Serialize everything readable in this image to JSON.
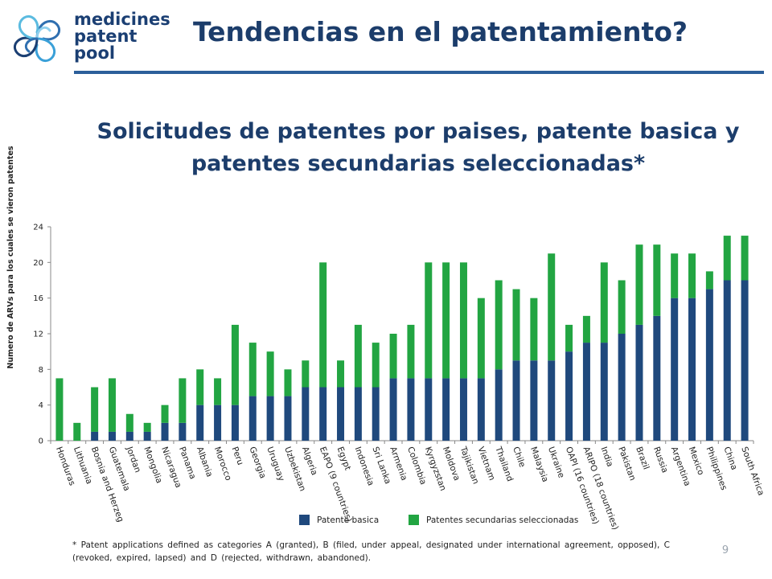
{
  "logo": {
    "line1": "medicines",
    "line2": "patent",
    "line3": "pool"
  },
  "slide_title": "Tendencias en el patentamiento?",
  "subtitle": "Solicitudes de patentes por paises, patente basica y patentes secundarias seleccionadas*",
  "footnote": "* Patent applications defined as categories A (granted), B (filed, under appeal, designated under international agreement, opposed), C (revoked, expired, lapsed) and D (rejected, withdrawn, abandoned).",
  "page_number": "9",
  "colors": {
    "basic": "#1f497d",
    "secondary": "#22a542"
  },
  "chart_data": {
    "type": "bar",
    "stacked": true,
    "ylabel": "Numero de ARVs para los cuales se vieron patentes",
    "ylim": [
      0,
      24
    ],
    "yticks": [
      0,
      4,
      8,
      12,
      16,
      20,
      24
    ],
    "legend_position": "bottom",
    "categories": [
      "Honduras",
      "Lithuania",
      "Bosnia and Herzeg",
      "Guatemala",
      "Jordan",
      "Mongolia",
      "Nicaragua",
      "Panama",
      "Albania",
      "Morocco",
      "Peru",
      "Georgia",
      "Uruguay",
      "Uzbekistan",
      "Algeria",
      "EAPO (9 countries)",
      "Egypt",
      "Indonesia",
      "Sri Lanka",
      "Armenia",
      "Colombia",
      "Kyrgyzstan",
      "Moldova",
      "Tajikistan",
      "Vietnam",
      "Thailand",
      "Chile",
      "Malaysia",
      "Ukraine",
      "OAPI (16 countries)",
      "ARIPO (18 countries)",
      "India",
      "Pakistan",
      "Brazil",
      "Russia",
      "Argentina",
      "Mexico",
      "Philippines",
      "China",
      "South Africa"
    ],
    "series": [
      {
        "name": "Patente basica",
        "values": [
          0,
          0,
          1,
          1,
          1,
          1,
          2,
          2,
          4,
          4,
          4,
          5,
          5,
          5,
          6,
          6,
          6,
          6,
          6,
          7,
          7,
          7,
          7,
          7,
          7,
          8,
          9,
          9,
          9,
          10,
          11,
          11,
          12,
          13,
          14,
          16,
          16,
          17,
          18,
          18
        ]
      },
      {
        "name": "Patentes secundarias seleccionadas",
        "values": [
          7,
          2,
          5,
          6,
          2,
          1,
          2,
          5,
          4,
          3,
          9,
          6,
          5,
          3,
          3,
          14,
          3,
          7,
          5,
          5,
          6,
          13,
          13,
          13,
          9,
          10,
          8,
          7,
          12,
          3,
          3,
          9,
          6,
          9,
          8,
          5,
          5,
          2,
          5,
          5
        ]
      }
    ]
  }
}
